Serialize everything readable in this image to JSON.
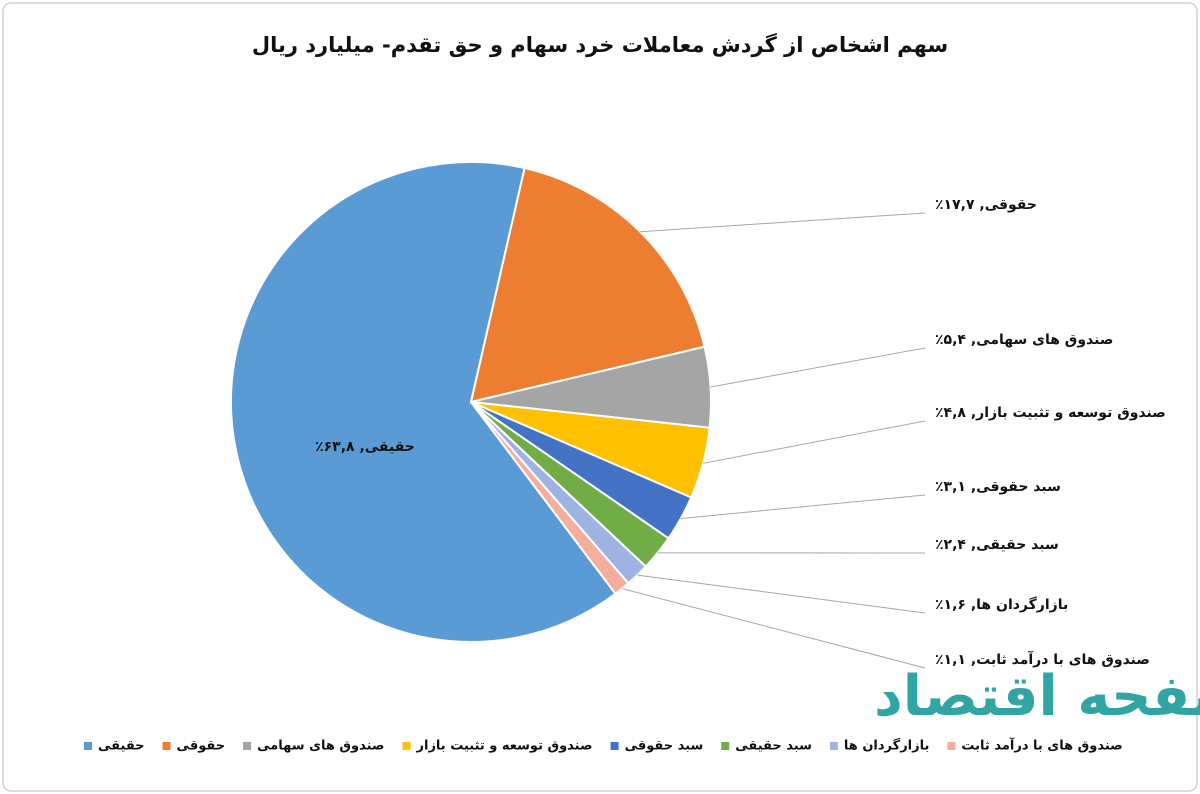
{
  "chart_data": {
    "type": "pie",
    "title": "سهم اشخاص از گردش معاملات خرد سهام و حق تقدم- میلیارد ریال",
    "categories": [
      "حقیقی",
      "حقوقی",
      "صندوق های سهامی",
      "صندوق توسعه و تثبیت بازار",
      "سبد حقوقی",
      "سبد حقیقی",
      "بازارگردان ها",
      "صندوق های با درآمد ثابت"
    ],
    "values": [
      63.8,
      17.7,
      5.4,
      4.8,
      3.1,
      2.4,
      1.6,
      1.1
    ],
    "value_labels": [
      "حقیقی, ۶۳,۸٪",
      "حقوقی, ۱۷,۷٪",
      "صندوق های سهامی, ۵,۴٪",
      "صندوق توسعه و تثبیت بازار, ۴,۸٪",
      "سبد حقوقی, ۳,۱٪",
      "سبد حقیقی, ۲,۴٪",
      "بازارگردان ها, ۱,۶٪",
      "صندوق های با درآمد ثابت, ۱,۱٪"
    ],
    "colors": [
      "#5b9bd5",
      "#ed7d31",
      "#a5a5a5",
      "#ffc000",
      "#4472c4",
      "#70ad47",
      "#9fb3e3",
      "#f3ae9e"
    ],
    "legend": "bottom"
  },
  "watermark": "صفحه اقتصاد"
}
